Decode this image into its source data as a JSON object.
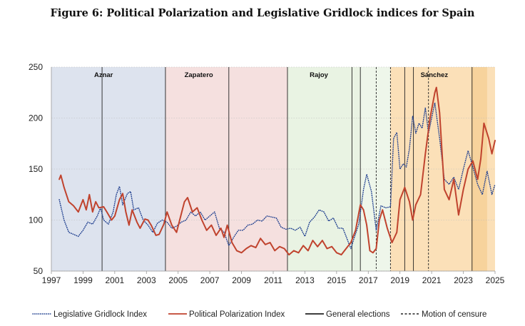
{
  "figure": {
    "title": "Figure 6: Political Polarization and Legislative Gridlock indices for Spain"
  },
  "chart_data": {
    "type": "line",
    "title": "Figure 6: Political Polarization and Legislative Gridlock indices for Spain",
    "xlabel": "",
    "ylabel": "",
    "xlim": [
      1997,
      2025
    ],
    "ylim": [
      50,
      250
    ],
    "x_ticks": [
      1997,
      1999,
      2001,
      2003,
      2005,
      2007,
      2009,
      2011,
      2013,
      2015,
      2017,
      2019,
      2021,
      2023,
      2025
    ],
    "y_ticks": [
      50,
      100,
      150,
      200,
      250
    ],
    "colors": {
      "gridlock": "#1f3f8f",
      "polarization": "#c0432e",
      "aznar": "#dde3ee",
      "zapatero": "#f5e0df",
      "rajoy_a": "#e9f3e3",
      "rajoy_b": "#eef6ea",
      "sanchez": "#fbe0b8",
      "sanchez_strip": "#f7d39c",
      "grid": "#bbbbbb",
      "axis": "#999999",
      "events": "#222222"
    },
    "eras": [
      {
        "name": "Aznar",
        "start": 1997.0,
        "end": 2004.2,
        "color_key": "aznar"
      },
      {
        "name": "Zapatero",
        "start": 2004.2,
        "end": 2011.9,
        "color_key": "zapatero"
      },
      {
        "name": "Rajoy",
        "start": 2011.9,
        "end": 2016.5,
        "color_key": "rajoy_a"
      },
      {
        "name": "",
        "start": 2016.5,
        "end": 2018.4,
        "color_key": "rajoy_b"
      },
      {
        "name": "Sánchez",
        "start": 2018.4,
        "end": 2025.3,
        "color_key": "sanchez"
      }
    ],
    "sanchez_strip": {
      "start": 2023.5,
      "end": 2024.5
    },
    "general_elections": [
      2000.2,
      2004.2,
      2008.2,
      2011.9,
      2015.97,
      2016.5,
      2019.3,
      2019.85,
      2023.55
    ],
    "motions_of_censure": [
      2017.5,
      2018.4,
      2020.8
    ],
    "series": [
      {
        "name": "Legislative Gridlock Index",
        "style": "dotted",
        "points": [
          [
            1997.5,
            120
          ],
          [
            1997.8,
            100
          ],
          [
            1998.1,
            88
          ],
          [
            1998.4,
            86
          ],
          [
            1998.7,
            84
          ],
          [
            1999.0,
            90
          ],
          [
            1999.3,
            98
          ],
          [
            1999.6,
            96
          ],
          [
            1999.9,
            104
          ],
          [
            2000.1,
            112
          ],
          [
            2000.3,
            100
          ],
          [
            2000.6,
            96
          ],
          [
            2000.9,
            108
          ],
          [
            2001.1,
            125
          ],
          [
            2001.3,
            133
          ],
          [
            2001.5,
            115
          ],
          [
            2001.8,
            126
          ],
          [
            2002.0,
            128
          ],
          [
            2002.2,
            110
          ],
          [
            2002.5,
            112
          ],
          [
            2002.8,
            100
          ],
          [
            2003.1,
            95
          ],
          [
            2003.4,
            88
          ],
          [
            2003.7,
            97
          ],
          [
            2004.0,
            100
          ],
          [
            2004.3,
            98
          ],
          [
            2004.6,
            92
          ],
          [
            2004.9,
            94
          ],
          [
            2005.2,
            98
          ],
          [
            2005.5,
            100
          ],
          [
            2005.8,
            108
          ],
          [
            2006.1,
            104
          ],
          [
            2006.4,
            108
          ],
          [
            2006.7,
            100
          ],
          [
            2007.0,
            104
          ],
          [
            2007.3,
            108
          ],
          [
            2007.6,
            92
          ],
          [
            2007.9,
            88
          ],
          [
            2008.2,
            75
          ],
          [
            2008.5,
            83
          ],
          [
            2008.8,
            90
          ],
          [
            2009.1,
            90
          ],
          [
            2009.4,
            95
          ],
          [
            2009.7,
            96
          ],
          [
            2010.0,
            100
          ],
          [
            2010.3,
            99
          ],
          [
            2010.6,
            104
          ],
          [
            2010.9,
            103
          ],
          [
            2011.2,
            102
          ],
          [
            2011.5,
            93
          ],
          [
            2011.8,
            91
          ],
          [
            2012.1,
            92
          ],
          [
            2012.4,
            90
          ],
          [
            2012.7,
            93
          ],
          [
            2013.0,
            84
          ],
          [
            2013.3,
            98
          ],
          [
            2013.6,
            103
          ],
          [
            2013.9,
            110
          ],
          [
            2014.2,
            108
          ],
          [
            2014.5,
            99
          ],
          [
            2014.8,
            102
          ],
          [
            2015.1,
            92
          ],
          [
            2015.4,
            92
          ],
          [
            2015.7,
            80
          ],
          [
            2015.9,
            72
          ],
          [
            2016.1,
            82
          ],
          [
            2016.4,
            96
          ],
          [
            2016.7,
            130
          ],
          [
            2016.9,
            145
          ],
          [
            2017.2,
            128
          ],
          [
            2017.5,
            90
          ],
          [
            2017.8,
            114
          ],
          [
            2018.1,
            112
          ],
          [
            2018.4,
            113
          ],
          [
            2018.6,
            180
          ],
          [
            2018.8,
            186
          ],
          [
            2019.0,
            150
          ],
          [
            2019.2,
            155
          ],
          [
            2019.4,
            152
          ],
          [
            2019.6,
            170
          ],
          [
            2019.8,
            202
          ],
          [
            2020.0,
            185
          ],
          [
            2020.2,
            195
          ],
          [
            2020.4,
            190
          ],
          [
            2020.6,
            210
          ],
          [
            2020.8,
            185
          ],
          [
            2021.0,
            200
          ],
          [
            2021.2,
            215
          ],
          [
            2021.5,
            180
          ],
          [
            2021.8,
            140
          ],
          [
            2022.1,
            135
          ],
          [
            2022.4,
            142
          ],
          [
            2022.7,
            130
          ],
          [
            2023.0,
            150
          ],
          [
            2023.3,
            168
          ],
          [
            2023.6,
            152
          ],
          [
            2023.9,
            135
          ],
          [
            2024.2,
            125
          ],
          [
            2024.5,
            148
          ],
          [
            2024.8,
            125
          ],
          [
            2025.0,
            135
          ]
        ]
      },
      {
        "name": "Political Polarization Index",
        "style": "solid",
        "points": [
          [
            1997.5,
            140
          ],
          [
            1997.6,
            144
          ],
          [
            1997.8,
            132
          ],
          [
            1998.1,
            118
          ],
          [
            1998.4,
            114
          ],
          [
            1998.7,
            108
          ],
          [
            1999.0,
            120
          ],
          [
            1999.2,
            110
          ],
          [
            1999.4,
            125
          ],
          [
            1999.6,
            108
          ],
          [
            1999.8,
            118
          ],
          [
            2000.0,
            112
          ],
          [
            2000.3,
            113
          ],
          [
            2000.5,
            108
          ],
          [
            2000.8,
            100
          ],
          [
            2001.0,
            104
          ],
          [
            2001.3,
            120
          ],
          [
            2001.5,
            126
          ],
          [
            2001.7,
            108
          ],
          [
            2001.9,
            95
          ],
          [
            2002.1,
            110
          ],
          [
            2002.4,
            98
          ],
          [
            2002.6,
            92
          ],
          [
            2002.9,
            101
          ],
          [
            2003.1,
            100
          ],
          [
            2003.3,
            95
          ],
          [
            2003.6,
            85
          ],
          [
            2003.8,
            86
          ],
          [
            2004.1,
            96
          ],
          [
            2004.3,
            108
          ],
          [
            2004.6,
            95
          ],
          [
            2004.9,
            88
          ],
          [
            2005.1,
            100
          ],
          [
            2005.4,
            118
          ],
          [
            2005.6,
            122
          ],
          [
            2005.9,
            108
          ],
          [
            2006.2,
            112
          ],
          [
            2006.5,
            100
          ],
          [
            2006.8,
            90
          ],
          [
            2007.1,
            95
          ],
          [
            2007.4,
            85
          ],
          [
            2007.7,
            92
          ],
          [
            2007.9,
            83
          ],
          [
            2008.1,
            95
          ],
          [
            2008.4,
            78
          ],
          [
            2008.7,
            70
          ],
          [
            2009.0,
            68
          ],
          [
            2009.3,
            72
          ],
          [
            2009.6,
            75
          ],
          [
            2009.9,
            73
          ],
          [
            2010.2,
            82
          ],
          [
            2010.5,
            76
          ],
          [
            2010.8,
            78
          ],
          [
            2011.1,
            70
          ],
          [
            2011.4,
            74
          ],
          [
            2011.7,
            72
          ],
          [
            2012.0,
            66
          ],
          [
            2012.3,
            70
          ],
          [
            2012.6,
            68
          ],
          [
            2012.9,
            75
          ],
          [
            2013.2,
            70
          ],
          [
            2013.5,
            80
          ],
          [
            2013.8,
            74
          ],
          [
            2014.1,
            80
          ],
          [
            2014.4,
            72
          ],
          [
            2014.7,
            74
          ],
          [
            2015.0,
            68
          ],
          [
            2015.3,
            66
          ],
          [
            2015.6,
            72
          ],
          [
            2015.9,
            78
          ],
          [
            2016.2,
            90
          ],
          [
            2016.5,
            115
          ],
          [
            2016.7,
            110
          ],
          [
            2016.9,
            95
          ],
          [
            2017.1,
            70
          ],
          [
            2017.3,
            68
          ],
          [
            2017.5,
            72
          ],
          [
            2017.7,
            100
          ],
          [
            2017.9,
            110
          ],
          [
            2018.2,
            92
          ],
          [
            2018.5,
            78
          ],
          [
            2018.8,
            88
          ],
          [
            2019.0,
            120
          ],
          [
            2019.3,
            132
          ],
          [
            2019.6,
            118
          ],
          [
            2019.8,
            100
          ],
          [
            2020.0,
            115
          ],
          [
            2020.3,
            125
          ],
          [
            2020.6,
            165
          ],
          [
            2020.9,
            200
          ],
          [
            2021.2,
            225
          ],
          [
            2021.3,
            230
          ],
          [
            2021.5,
            205
          ],
          [
            2021.8,
            130
          ],
          [
            2022.1,
            120
          ],
          [
            2022.4,
            140
          ],
          [
            2022.7,
            105
          ],
          [
            2023.0,
            130
          ],
          [
            2023.3,
            150
          ],
          [
            2023.6,
            158
          ],
          [
            2023.9,
            140
          ],
          [
            2024.1,
            160
          ],
          [
            2024.3,
            195
          ],
          [
            2024.6,
            180
          ],
          [
            2024.8,
            165
          ],
          [
            2025.0,
            178
          ]
        ]
      }
    ],
    "legend": {
      "position": "bottom",
      "entries": [
        {
          "label": "Legislative Gridlock Index",
          "style": "dotted",
          "color_key": "gridlock"
        },
        {
          "label": "Political Polarization Index",
          "style": "solid",
          "color_key": "polarization"
        },
        {
          "label": "General elections",
          "style": "solid",
          "color_key": "events"
        },
        {
          "label": "Motion of censure",
          "style": "dashed",
          "color_key": "events"
        }
      ]
    }
  }
}
